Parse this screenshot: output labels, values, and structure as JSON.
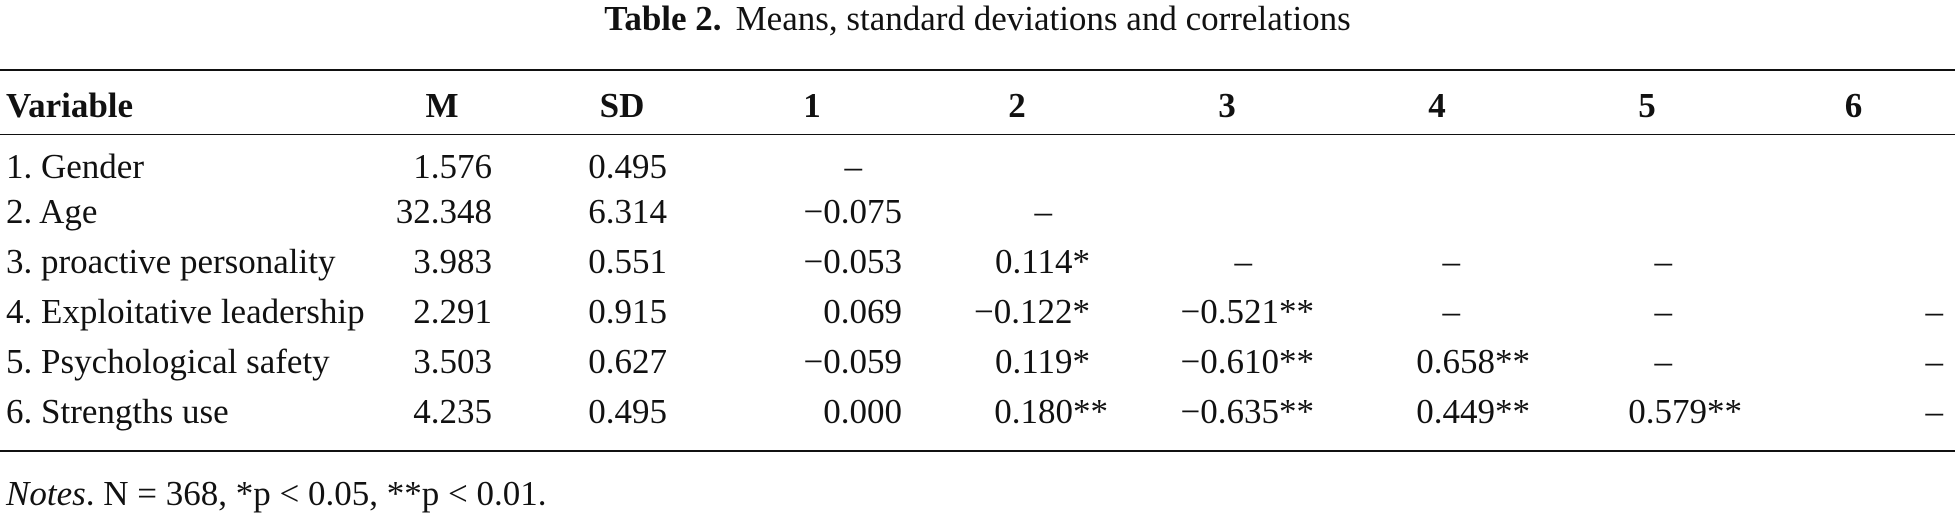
{
  "caption": {
    "label": "Table 2.",
    "text": "Means, standard deviations and correlations"
  },
  "table": {
    "headers": [
      "Variable",
      "M",
      "SD",
      "1",
      "2",
      "3",
      "4",
      "5",
      "6"
    ],
    "rows": [
      [
        "1. Gender",
        "1.576",
        "0.495",
        "–",
        "",
        "",
        "",
        "",
        ""
      ],
      [
        "2. Age",
        "32.348",
        "6.314",
        "−0.075",
        "–",
        "",
        "",
        "",
        ""
      ],
      [
        "3. proactive personality",
        "3.983",
        "0.551",
        "−0.053",
        "0.114*",
        "–",
        "–",
        "–",
        ""
      ],
      [
        "4. Exploitative leadership",
        "2.291",
        "0.915",
        "0.069",
        "−0.122*",
        "−0.521**",
        "–",
        "–",
        "–"
      ],
      [
        "5. Psychological safety",
        "3.503",
        "0.627",
        "−0.059",
        "0.119*",
        "−0.610**",
        "0.658**",
        "–",
        "–"
      ],
      [
        "6. Strengths use",
        "4.235",
        "0.495",
        "0.000",
        "0.180**",
        "−0.635**",
        "0.449**",
        "0.579**",
        "–"
      ]
    ]
  },
  "notes": {
    "label": "Notes",
    "text": ". N = 368, *p < 0.05, **p < 0.01."
  }
}
